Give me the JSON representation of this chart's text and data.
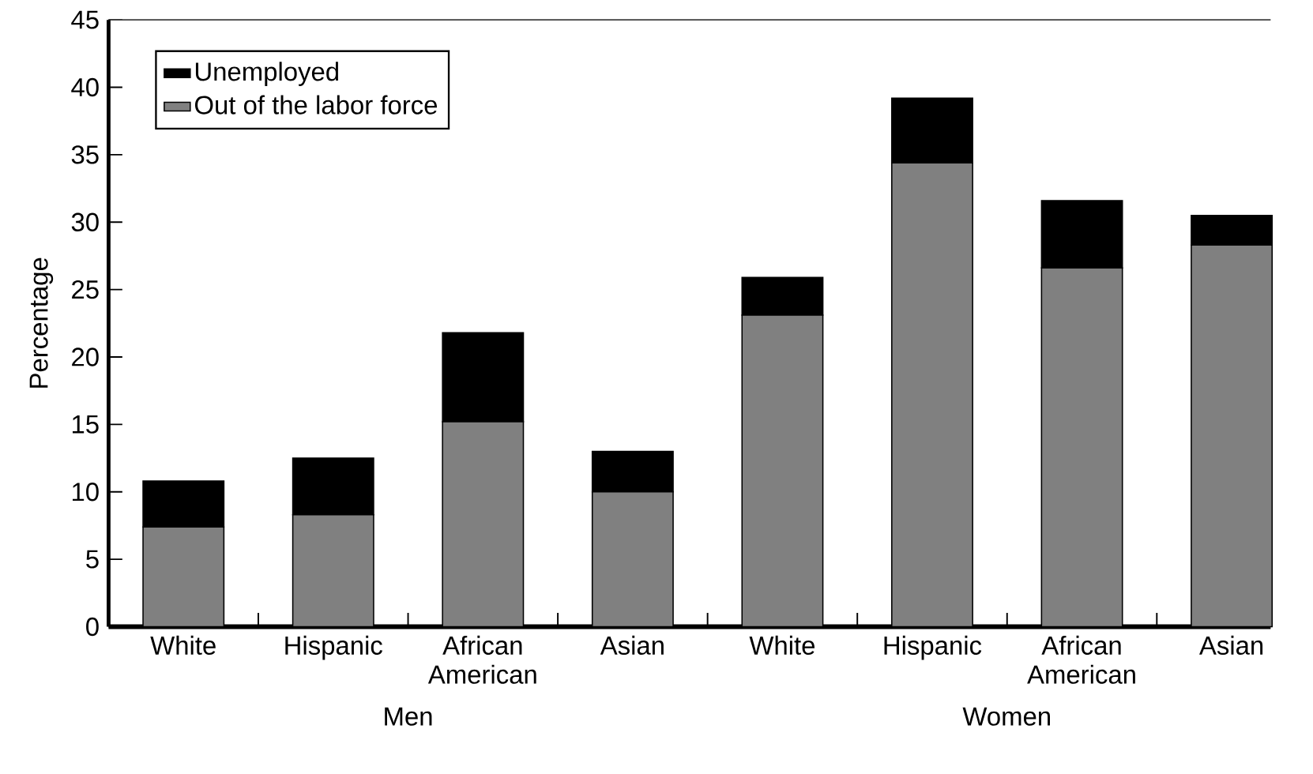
{
  "chart_data": {
    "type": "bar",
    "stacked": true,
    "ylabel": "Percentage",
    "categories": [
      "White",
      "Hispanic",
      "African American",
      "Asian",
      "White",
      "Hispanic",
      "African American",
      "Asian"
    ],
    "series": [
      {
        "name": "Out of the labor force",
        "color": "#808080",
        "values": [
          7.4,
          8.3,
          15.2,
          10.0,
          23.1,
          34.4,
          26.6,
          28.3
        ]
      },
      {
        "name": "Unemployed",
        "color": "#000000",
        "values": [
          3.4,
          4.2,
          6.6,
          3.0,
          2.8,
          4.8,
          5.0,
          2.2
        ]
      }
    ],
    "ylim": [
      0,
      45
    ],
    "yticks": [
      0,
      5,
      10,
      15,
      20,
      25,
      30,
      35,
      40,
      45
    ],
    "legend": "top left",
    "annotations": [
      "Men",
      "Women"
    ]
  }
}
